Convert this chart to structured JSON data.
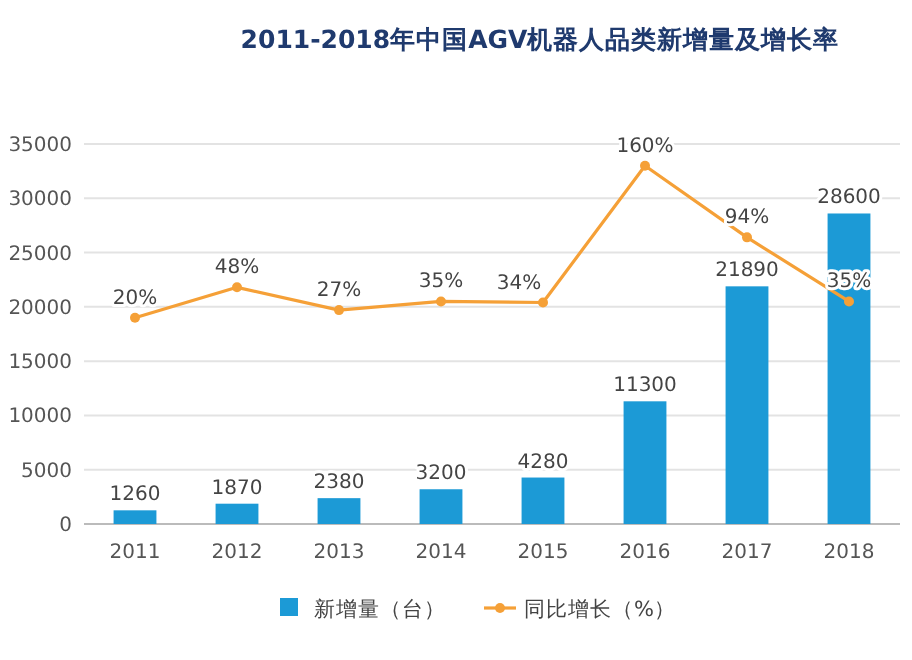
{
  "chart_data": {
    "type": "bar",
    "title": "2011-2018年中国AGV机器人品类新增量及增长率",
    "categories": [
      "2011",
      "2012",
      "2013",
      "2014",
      "2015",
      "2016",
      "2017",
      "2018"
    ],
    "series": [
      {
        "name": "新增量（台）",
        "color": "#1c9ad6",
        "values": [
          1260,
          1870,
          2380,
          3200,
          4280,
          11300,
          21890,
          28600
        ]
      },
      {
        "name": "同比增长（%）",
        "type": "line",
        "axis": "y2",
        "color": "#f5a037",
        "marker": "circle",
        "values": [
          20,
          48,
          27,
          35,
          34,
          160,
          94,
          35
        ],
        "value_labels": [
          "20%",
          "48%",
          "27%",
          "35%",
          "34%",
          "160%",
          "94%",
          "35%"
        ]
      }
    ],
    "ylim": [
      0,
      35000
    ],
    "yticks": [
      0,
      5000,
      10000,
      15000,
      20000,
      25000,
      30000,
      35000
    ],
    "y2lim": [
      -170,
      180
    ],
    "tick_labels": "x,y",
    "data_labels": true,
    "grid": "y",
    "legend": "bottom"
  }
}
